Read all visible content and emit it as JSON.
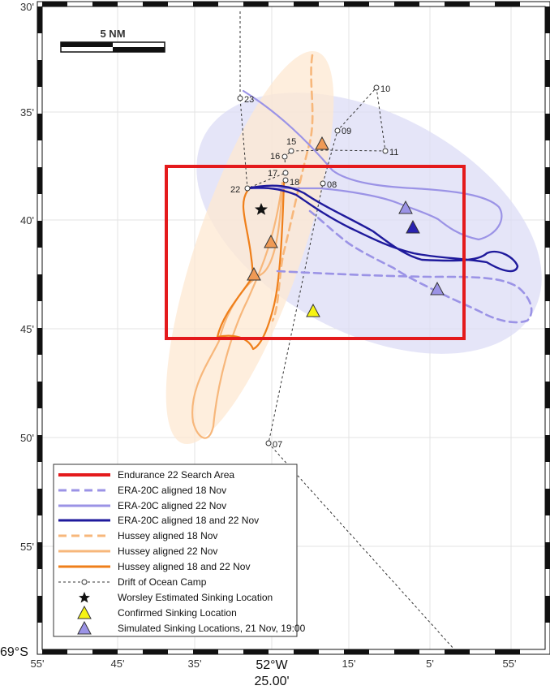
{
  "map": {
    "corner_label": "69°S",
    "lat_ticks": [
      "30'",
      "35'",
      "40'",
      "45'",
      "50'",
      "55'"
    ],
    "lon_ticks": [
      "55'",
      "45'",
      "35'",
      "25'",
      "15'",
      "5'",
      "55'"
    ],
    "lon_center": "52°W",
    "lon_sub": "25.00'",
    "scale_bar": "5 NM",
    "colors": {
      "search_area": "#e41a1c",
      "era_light": "#9b93e6",
      "era_dark": "#1f1a9c",
      "hussey_light": "#f7b77b",
      "hussey_dark": "#ef7f1a",
      "confirmed": "#f7f414",
      "era_ellipse": "#dcdcf6",
      "hussey_ellipse": "#fde8d2"
    }
  },
  "camp_points": [
    {
      "id": "07"
    },
    {
      "id": "08"
    },
    {
      "id": "09"
    },
    {
      "id": "10"
    },
    {
      "id": "11"
    },
    {
      "id": "15"
    },
    {
      "id": "16"
    },
    {
      "id": "17"
    },
    {
      "id": "18"
    },
    {
      "id": "22"
    },
    {
      "id": "23"
    }
  ],
  "legend": [
    {
      "label": "Endurance 22 Search Area",
      "symbol": "search-area-line"
    },
    {
      "label": "ERA-20C aligned 18 Nov",
      "symbol": "era-dashed-line"
    },
    {
      "label": "ERA-20C aligned 22 Nov",
      "symbol": "era-light-line"
    },
    {
      "label": "ERA-20C aligned 18 and 22 Nov",
      "symbol": "era-dark-line"
    },
    {
      "label": "Hussey aligned 18 Nov",
      "symbol": "hussey-dashed-line"
    },
    {
      "label": "Hussey aligned 22 Nov",
      "symbol": "hussey-light-line"
    },
    {
      "label": "Hussey aligned 18 and 22 Nov",
      "symbol": "hussey-dark-line"
    },
    {
      "label": "Drift of Ocean Camp",
      "symbol": "drift-line"
    },
    {
      "label": "Worsley Estimated Sinking Location",
      "symbol": "star"
    },
    {
      "label": "Confirmed Sinking Location",
      "symbol": "yellow-triangle"
    },
    {
      "label": "Simulated Sinking Locations, 21 Nov, 19:00",
      "symbol": "blue-triangle"
    }
  ]
}
